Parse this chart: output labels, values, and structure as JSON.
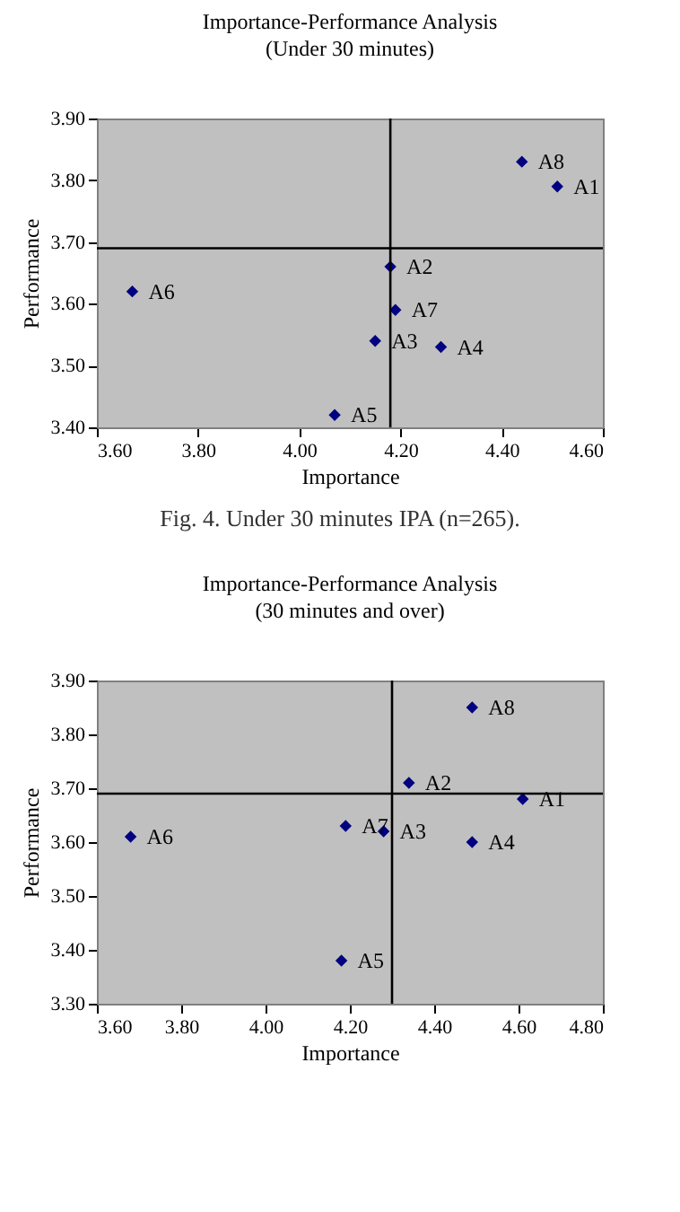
{
  "chart_data": [
    {
      "type": "scatter",
      "title": "Importance-Performance Analysis",
      "subtitle": "(Under 30 minutes)",
      "xlabel": "Importance",
      "ylabel": "Performance",
      "x": [
        4.51,
        4.18,
        4.15,
        4.28,
        4.07,
        3.67,
        4.19,
        4.44
      ],
      "series": [
        {
          "color": "#000080",
          "values": [
            3.79,
            3.66,
            3.54,
            3.53,
            3.42,
            3.62,
            3.59,
            3.83
          ]
        }
      ],
      "xlim": [
        3.6,
        4.6
      ],
      "xticks": [
        {
          "value": 3.6,
          "label": "3.60"
        },
        {
          "value": 3.8,
          "label": "3.80"
        },
        {
          "value": 4.0,
          "label": "4.00"
        },
        {
          "value": 4.2,
          "label": "4.20"
        },
        {
          "value": 4.4,
          "label": "4.40"
        },
        {
          "value": 4.6,
          "label": "4.60"
        }
      ],
      "ylim": [
        3.4,
        3.9
      ],
      "yticks": [
        {
          "value": 3.4,
          "label": "3.40"
        },
        {
          "value": 3.5,
          "label": "3.50"
        },
        {
          "value": 3.6,
          "label": "3.60"
        },
        {
          "value": 3.7,
          "label": "3.70"
        },
        {
          "value": 3.8,
          "label": "3.80"
        },
        {
          "value": 3.9,
          "label": "3.90"
        }
      ],
      "ref_lines": [
        {
          "axis": "x",
          "value": 4.18,
          "color": "#000000"
        },
        {
          "axis": "y",
          "value": 3.69,
          "color": "#000000"
        }
      ],
      "annotations": [
        {
          "text": "A1",
          "x": 4.51,
          "y": 3.79
        },
        {
          "text": "A2",
          "x": 4.18,
          "y": 3.66
        },
        {
          "text": "A3",
          "x": 4.15,
          "y": 3.54
        },
        {
          "text": "A4",
          "x": 4.28,
          "y": 3.53
        },
        {
          "text": "A5",
          "x": 4.07,
          "y": 3.42
        },
        {
          "text": "A6",
          "x": 3.67,
          "y": 3.62
        },
        {
          "text": "A7",
          "x": 4.19,
          "y": 3.59
        },
        {
          "text": "A8",
          "x": 4.44,
          "y": 3.83
        },
        "Fig. 4. Under 30 minutes IPA (n=265)."
      ],
      "marker": "diamond",
      "grid": false
    },
    {
      "type": "scatter",
      "title": "Importance-Performance Analysis",
      "subtitle": "(30 minutes and over)",
      "xlabel": "Importance",
      "ylabel": "Performance",
      "x": [
        4.61,
        4.34,
        4.28,
        4.49,
        4.18,
        3.68,
        4.19,
        4.49
      ],
      "series": [
        {
          "color": "#000080",
          "values": [
            3.68,
            3.71,
            3.62,
            3.6,
            3.38,
            3.61,
            3.63,
            3.85
          ]
        }
      ],
      "xlim": [
        3.6,
        4.8
      ],
      "xticks": [
        {
          "value": 3.6,
          "label": "3.60"
        },
        {
          "value": 3.8,
          "label": "3.80"
        },
        {
          "value": 4.0,
          "label": "4.00"
        },
        {
          "value": 4.2,
          "label": "4.20"
        },
        {
          "value": 4.4,
          "label": "4.40"
        },
        {
          "value": 4.6,
          "label": "4.60"
        },
        {
          "value": 4.8,
          "label": "4.80"
        }
      ],
      "ylim": [
        3.3,
        3.9
      ],
      "yticks": [
        {
          "value": 3.3,
          "label": "3.30"
        },
        {
          "value": 3.4,
          "label": "3.40"
        },
        {
          "value": 3.5,
          "label": "3.50"
        },
        {
          "value": 3.6,
          "label": "3.60"
        },
        {
          "value": 3.7,
          "label": "3.70"
        },
        {
          "value": 3.8,
          "label": "3.80"
        },
        {
          "value": 3.9,
          "label": "3.90"
        }
      ],
      "ref_lines": [
        {
          "axis": "x",
          "value": 4.3,
          "color": "#000000"
        },
        {
          "axis": "y",
          "value": 3.69,
          "color": "#000000"
        }
      ],
      "annotations": [
        {
          "text": "A1",
          "x": 4.61,
          "y": 3.68
        },
        {
          "text": "A2",
          "x": 4.34,
          "y": 3.71
        },
        {
          "text": "A3",
          "x": 4.28,
          "y": 3.62
        },
        {
          "text": "A4",
          "x": 4.49,
          "y": 3.6
        },
        {
          "text": "A5",
          "x": 4.18,
          "y": 3.38
        },
        {
          "text": "A6",
          "x": 3.68,
          "y": 3.61
        },
        {
          "text": "A7",
          "x": 4.19,
          "y": 3.63
        },
        {
          "text": "A8",
          "x": 4.49,
          "y": 3.85
        }
      ],
      "marker": "diamond",
      "grid": false
    }
  ]
}
